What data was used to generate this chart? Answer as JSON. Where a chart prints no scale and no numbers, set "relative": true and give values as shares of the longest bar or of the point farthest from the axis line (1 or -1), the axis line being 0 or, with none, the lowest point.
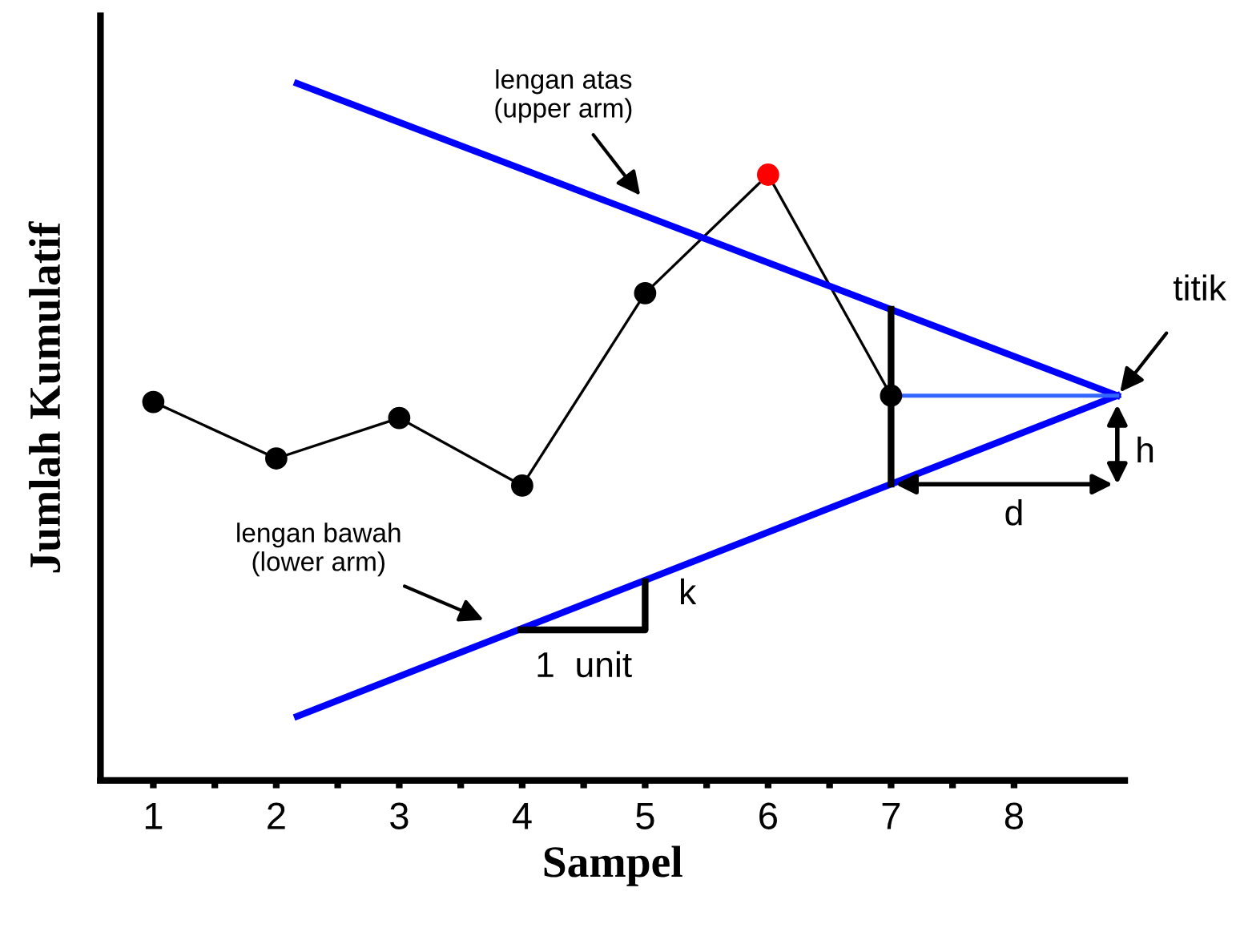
{
  "chart_data": {
    "type": "line",
    "relative": true,
    "xlabel": "Sampel",
    "ylabel": "Jumlah Kumulatif",
    "xlim": [
      0.57,
      8.9
    ],
    "xticks": [
      1,
      {
        "value": 1.5,
        "label": null
      },
      2,
      {
        "value": 2.5,
        "label": null
      },
      3,
      {
        "value": 3.5,
        "label": null
      },
      4,
      {
        "value": 4.5,
        "label": null
      },
      5,
      {
        "value": 5.5,
        "label": null
      },
      6,
      {
        "value": 6.5,
        "label": null
      },
      7,
      {
        "value": 7.5,
        "label": null
      },
      8
    ],
    "grid": false,
    "ref_lines": [
      {
        "axis": "x",
        "value": 0.57,
        "color": "#000000"
      }
    ],
    "series": [
      {
        "x": [
          1,
          2,
          3,
          4,
          5,
          6,
          7
        ],
        "values": [
          0.543,
          0.462,
          0.52,
          0.423,
          0.699,
          0.869,
          0.552
        ],
        "color": "#000000",
        "colors": [
          "#000000",
          "#000000",
          "#000000",
          "#000000",
          "#000000",
          "#ff0000",
          "#000000"
        ],
        "marker": "circle"
      },
      {
        "x": [
          2.17,
          8.84
        ],
        "values": [
          1.0,
          0.552
        ],
        "color": "#0000ff",
        "marker": "none"
      },
      {
        "x": [
          2.17,
          8.84
        ],
        "values": [
          0.092,
          0.552
        ],
        "color": "#0000ff",
        "marker": "none"
      },
      {
        "x": [
          7,
          8.84
        ],
        "values": [
          0.552,
          0.552
        ],
        "color": "#3366ff",
        "marker": "none"
      },
      {
        "x": [
          7,
          7
        ],
        "values": [
          0.676,
          0.425
        ],
        "color": "#000000",
        "marker": "none"
      },
      {
        "x": [
          3.99,
          5.0,
          5.0
        ],
        "values": [
          0.216,
          0.216,
          0.285
        ],
        "color": "#000000",
        "marker": "none"
      }
    ],
    "annotations": [
      "lengan atas\n(upper arm)",
      "lengan bawah\n(lower arm)",
      {
        "text": "titik",
        "x": 8.84,
        "y": 0.552
      },
      {
        "text": "1  unit",
        "x": 4.5,
        "y": 0.216
      },
      {
        "text": "k",
        "x": 5.0,
        "y": 0.25
      },
      "d",
      "h"
    ]
  }
}
